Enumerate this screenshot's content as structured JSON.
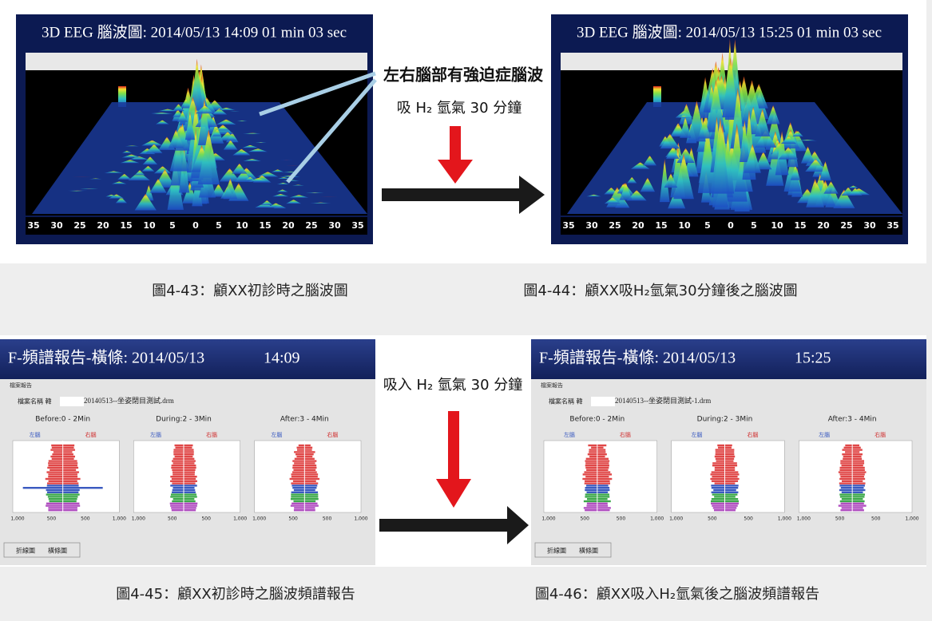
{
  "eeg_panels": [
    {
      "title": "3D EEG 腦波圖: 2014/05/13 14:09 01 min 03 sec",
      "axis_labels": [
        "35",
        "30",
        "25",
        "20",
        "15",
        "10",
        "5",
        "0",
        "5",
        "10",
        "15",
        "20",
        "25",
        "30",
        "35"
      ]
    },
    {
      "title": "3D EEG 腦波圖: 2014/05/13 15:25 01 min 03 sec",
      "axis_labels": [
        "35",
        "30",
        "25",
        "20",
        "15",
        "10",
        "5",
        "0",
        "5",
        "10",
        "15",
        "20",
        "25",
        "30",
        "35"
      ]
    }
  ],
  "transition_top": {
    "annotation": "左右腦部有強迫症腦波",
    "step": "吸 H₂ 氫氣 30 分鐘"
  },
  "captions_top": [
    "圖4-43：顧XX初診時之腦波圖",
    "圖4-44：顧XX吸H₂氫氣30分鐘後之腦波圖"
  ],
  "report_panels": [
    {
      "title": "F-頻譜報告-橫條: 2014/05/13",
      "time": "14:09",
      "window_title": "檔案報告",
      "file_label": "檔案名稱 韓",
      "file_name": "20140513--坐姿閉目測試.drm",
      "columns": [
        "Before:0 - 2Min",
        "During:2 - 3Min",
        "After:3 - 4Min"
      ],
      "left_label": "左腦",
      "right_label": "右腦",
      "x_labels": [
        "1,000",
        "500",
        "500",
        "1,000"
      ],
      "options": [
        "折線圖",
        "橫條圖"
      ]
    },
    {
      "title": "F-頻譜報告-橫條: 2014/05/13",
      "time": "15:25",
      "window_title": "檔案報告",
      "file_label": "檔案名稱 韓",
      "file_name": "20140513--坐姿閉目測試-1.drm",
      "columns": [
        "Before:0 - 2Min",
        "During:2 - 3Min",
        "After:3 - 4Min"
      ],
      "left_label": "左腦",
      "right_label": "右腦",
      "x_labels": [
        "1,000",
        "500",
        "500",
        "1,000"
      ],
      "options": [
        "折線圖",
        "橫條圖"
      ]
    }
  ],
  "transition_bottom": {
    "step": "吸入 H₂ 氫氣 30 分鐘"
  },
  "captions_bottom": [
    "圖4-45：顧XX初診時之腦波頻譜報告",
    "圖4-46：顧XX吸入H₂氫氣後之腦波頻譜報告"
  ]
}
